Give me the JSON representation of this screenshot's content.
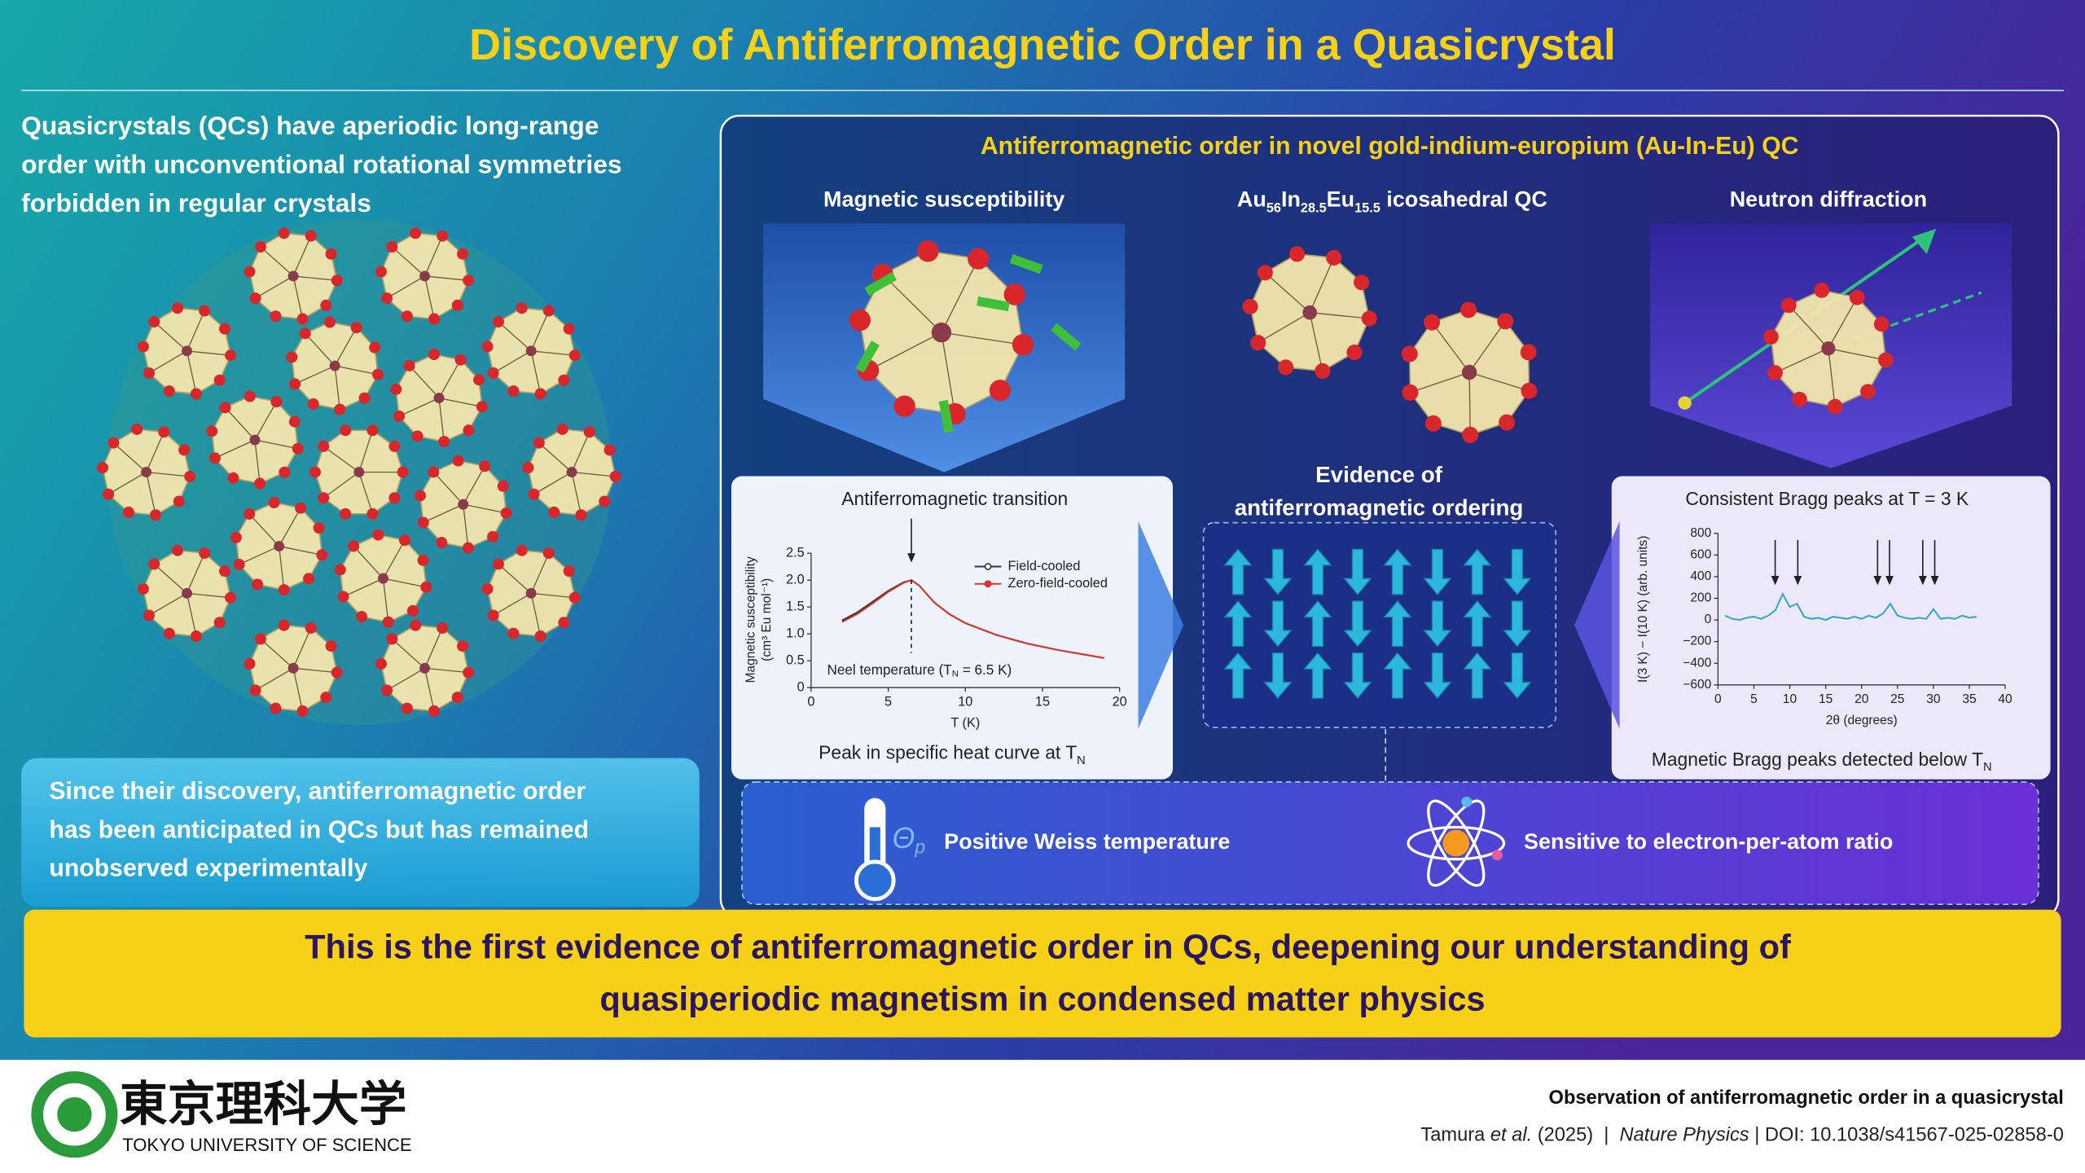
{
  "title": "Discovery of Antiferromagnetic Order in a Quasicrystal",
  "intro": [
    "Quasicrystals (QCs) have aperiodic long-range",
    "order with unconventional rotational symmetries",
    "forbidden in regular crystals"
  ],
  "callout": [
    "Since their discovery, antiferromagnetic order",
    "has been anticipated in QCs but has remained",
    "unobserved experimentally"
  ],
  "panel": {
    "title": "Antiferromagnetic order in novel gold-indium-europium (Au-In-Eu) QC",
    "susceptibility": {
      "heading": "Magnetic susceptibility",
      "caption": [
        "Peak in specific heat curve at T",
        "N"
      ],
      "chart": {
        "type": "line",
        "annotation": "Antiferromagnetic transition",
        "marker_label": [
          "Neel temperature (T",
          "N",
          " = 6.5 K)"
        ],
        "xlabel": "T (K)",
        "ylabel": [
          "Magnetic susceptibility",
          "(cm³ Eu mol⁻¹)"
        ],
        "x": [
          2,
          3,
          4,
          5,
          6,
          6.5,
          7,
          8,
          9,
          10,
          12,
          14,
          16,
          18,
          19
        ],
        "series": [
          {
            "name": "Field-cooled",
            "color": "#333333",
            "values": [
              1.25,
              1.4,
              1.6,
              1.8,
              1.96,
              2.0,
              1.9,
              1.58,
              1.36,
              1.2,
              0.98,
              0.82,
              0.7,
              0.6,
              0.55
            ]
          },
          {
            "name": "Zero-field-cooled",
            "color": "#d9342b",
            "values": [
              1.22,
              1.37,
              1.57,
              1.78,
              1.95,
              2.0,
              1.9,
              1.58,
              1.36,
              1.2,
              0.98,
              0.82,
              0.7,
              0.6,
              0.55
            ]
          }
        ],
        "xlim": [
          0,
          20
        ],
        "xticks": [
          0,
          5,
          10,
          15,
          20
        ],
        "ylim": [
          0,
          2.5
        ],
        "yticks": [
          0,
          0.5,
          {
            "value": 1,
            "label": "1.0"
          },
          1.5,
          {
            "value": 2,
            "label": "2.0"
          },
          2.5
        ]
      }
    },
    "structure": {
      "heading": {
        "formula": [
          "Au",
          "56",
          "In",
          "28.5",
          "Eu",
          "15.5"
        ],
        "suffix": " icosahedral QC"
      },
      "evidence": [
        "Evidence of",
        "antiferromagnetic ordering"
      ]
    },
    "neutron": {
      "heading": "Neutron diffraction",
      "caption": [
        "Magnetic Bragg peaks detected below T",
        "N"
      ],
      "chart": {
        "type": "line",
        "annotation": "Consistent Bragg peaks at T = 3 K",
        "xlabel": "2θ (degrees)",
        "ylabel": "I(3 K) − I(10 K) (arb. units)",
        "x": [
          1,
          2,
          3,
          4,
          5,
          6,
          7,
          8,
          9,
          10,
          11,
          12,
          13,
          14,
          15,
          16,
          17,
          18,
          19,
          20,
          21,
          22,
          23,
          24,
          25,
          26,
          27,
          28,
          29,
          30,
          31,
          32,
          33,
          34,
          35,
          36
        ],
        "series": [
          {
            "name": "I(3 K) − I(10 K)",
            "color": "#2aa6c8",
            "values": [
              40,
              10,
              0,
              20,
              30,
              10,
              40,
              90,
              240,
              120,
              150,
              30,
              10,
              20,
              0,
              30,
              20,
              10,
              30,
              10,
              40,
              20,
              60,
              150,
              40,
              20,
              10,
              20,
              10,
              100,
              10,
              20,
              10,
              40,
              20,
              30
            ]
          }
        ],
        "xlim": [
          0,
          40
        ],
        "xticks": [
          0,
          5,
          10,
          15,
          20,
          25,
          30,
          35,
          40
        ],
        "ylim": [
          -600,
          800
        ],
        "yticks": [
          {
            "value": -600,
            "label": "−600"
          },
          {
            "value": -400,
            "label": "−400"
          },
          {
            "value": -200,
            "label": "−200"
          },
          0,
          200,
          400,
          600,
          800
        ]
      }
    },
    "features": [
      {
        "symbol": "Θ",
        "symbol_sub": "p",
        "label": "Positive Weiss temperature"
      },
      {
        "label": "Sensitive to electron-per-atom ratio"
      }
    ]
  },
  "conclusion": [
    "This is the first evidence of antiferromagnetic order in QCs, deepening our understanding of",
    "quasiperiodic magnetism in condensed matter physics"
  ],
  "footer": {
    "logo_kanji": "東京理科大学",
    "logo_text": "TOKYO UNIVERSITY OF SCIENCE",
    "paper_title": "Observation of antiferromagnetic order in a quasicrystal",
    "citation": [
      "Tamura ",
      "et al.",
      " (2025)  |  ",
      "Nature Physics",
      " | DOI: 10.1038/s41567-025-02858-0"
    ]
  }
}
